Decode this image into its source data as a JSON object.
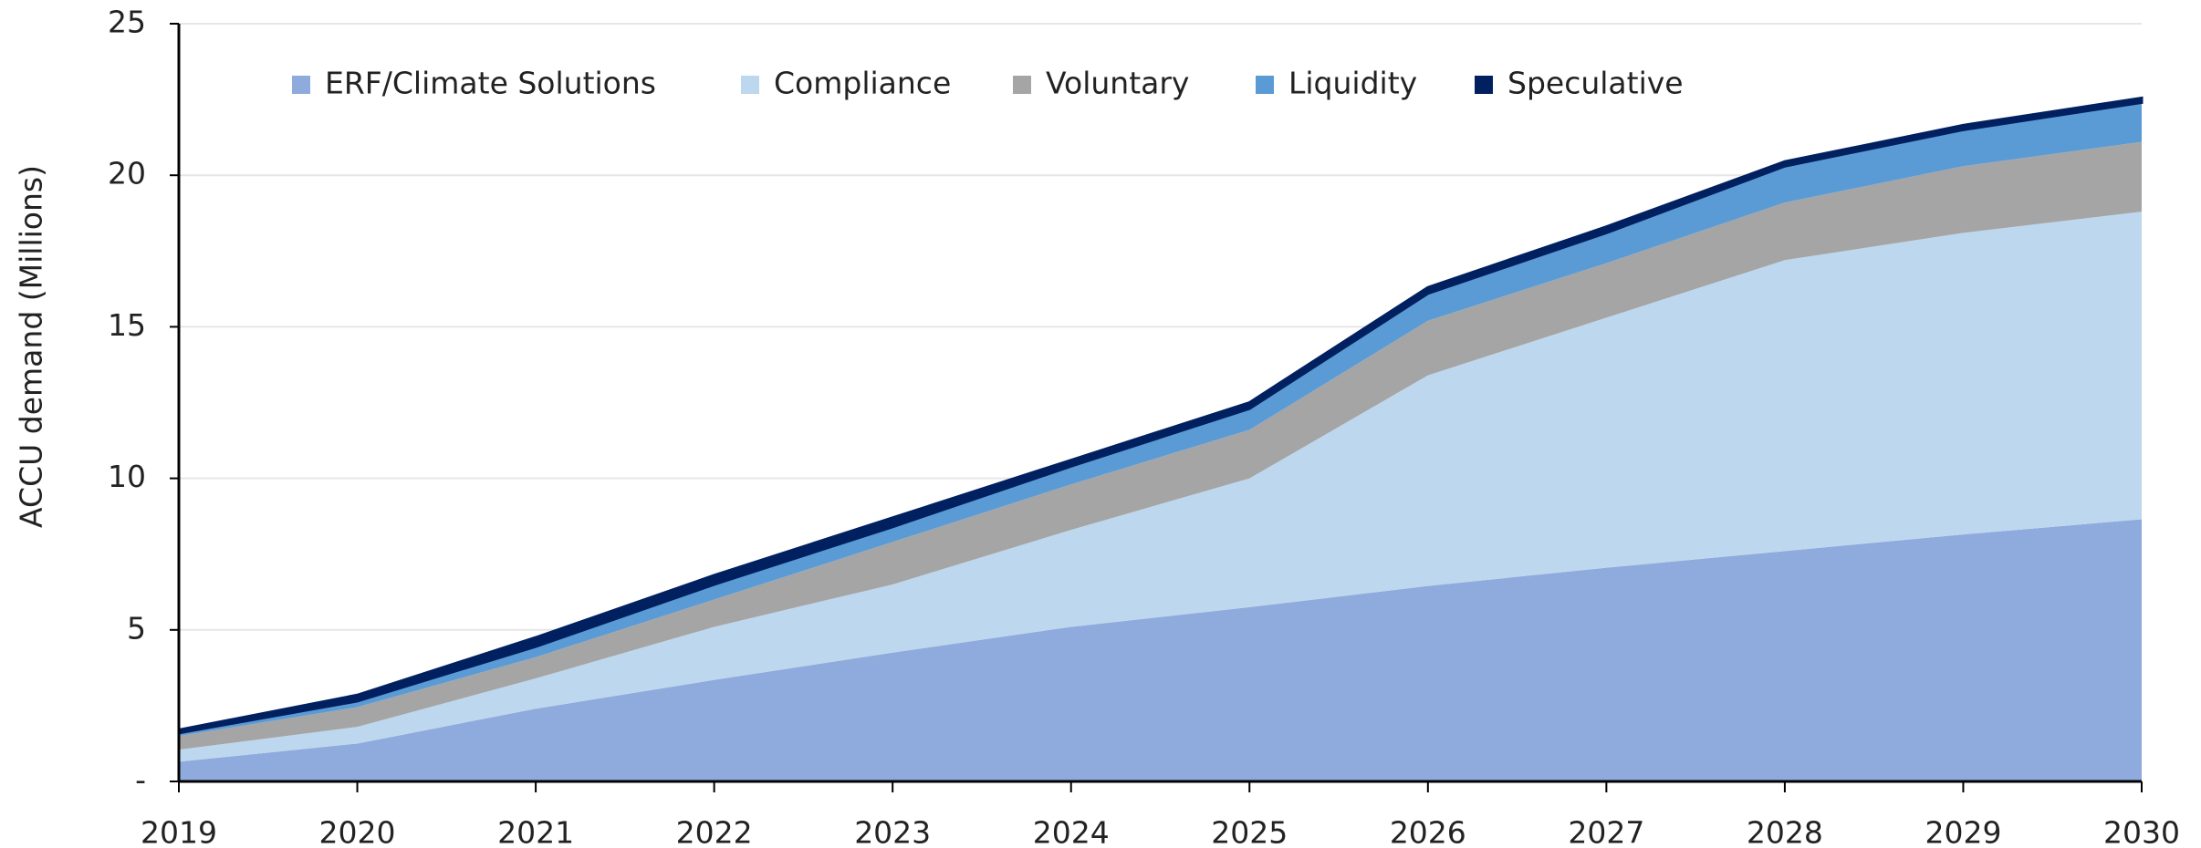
{
  "chart_data": {
    "type": "stacked_area",
    "y_label": "ACCU demand (Millions)",
    "categories": [
      "2019",
      "2020",
      "2021",
      "2022",
      "2023",
      "2024",
      "2025",
      "2026",
      "2027",
      "2028",
      "2029",
      "2030"
    ],
    "series": [
      {
        "name": "ERF/Climate Solutions",
        "color": "#8faadc",
        "values": [
          0.65,
          1.25,
          2.4,
          3.35,
          4.25,
          5.1,
          5.75,
          6.45,
          7.05,
          7.6,
          8.15,
          8.65
        ]
      },
      {
        "name": "Compliance",
        "color": "#bdd7ee",
        "values": [
          0.4,
          0.55,
          1.0,
          1.75,
          2.25,
          3.2,
          4.25,
          6.95,
          8.25,
          9.6,
          9.95,
          10.15
        ]
      },
      {
        "name": "Voluntary",
        "color": "#a5a5a5",
        "values": [
          0.45,
          0.65,
          0.7,
          0.9,
          1.4,
          1.5,
          1.6,
          1.8,
          1.8,
          1.9,
          2.2,
          2.3
        ]
      },
      {
        "name": "Liquidity",
        "color": "#5b9bd5",
        "values": [
          0.1,
          0.2,
          0.35,
          0.5,
          0.5,
          0.6,
          0.7,
          0.9,
          1.0,
          1.2,
          1.2,
          1.3
        ]
      },
      {
        "name": "Speculative",
        "color": "#002060",
        "values": [
          0.1,
          0.2,
          0.3,
          0.3,
          0.3,
          0.2,
          0.2,
          0.2,
          0.2,
          0.15,
          0.15,
          0.15
        ]
      }
    ],
    "ylim": [
      0,
      25
    ],
    "yticks": [
      {
        "value": 0,
        "label": "-"
      },
      5,
      10,
      15,
      20,
      25
    ],
    "grid": true,
    "legend": "top"
  }
}
